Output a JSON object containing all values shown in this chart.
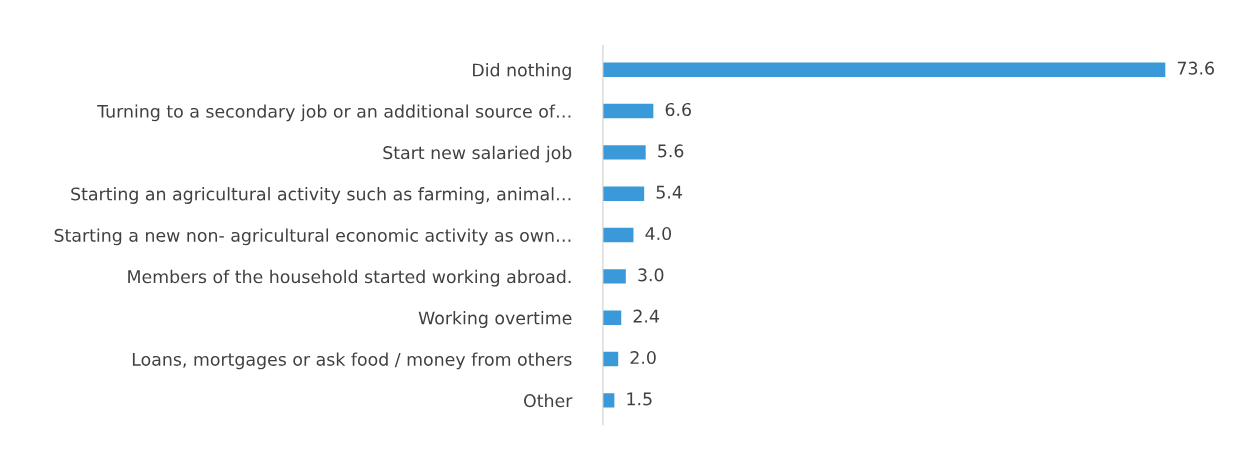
{
  "chart_data": {
    "type": "bar",
    "orientation": "horizontal",
    "categories": [
      "Did nothing",
      "Turning to a secondary job or an additional source of…",
      "Start new salaried job",
      "Starting an agricultural activity such as farming, animal…",
      "Starting a new non- agricultural economic activity as own…",
      "Members of the household started working abroad.",
      "Working overtime",
      "Loans, mortgages or ask food / money from others",
      "Other"
    ],
    "values": [
      73.6,
      6.6,
      5.6,
      5.4,
      4.0,
      3.0,
      2.4,
      2.0,
      1.5
    ],
    "value_labels": [
      "73.6",
      "6.6",
      "5.6",
      "5.4",
      "4.0",
      "3.0",
      "2.4",
      "2.0",
      "1.5"
    ],
    "color": "#3a9ad9",
    "grid": false,
    "legend": false
  }
}
